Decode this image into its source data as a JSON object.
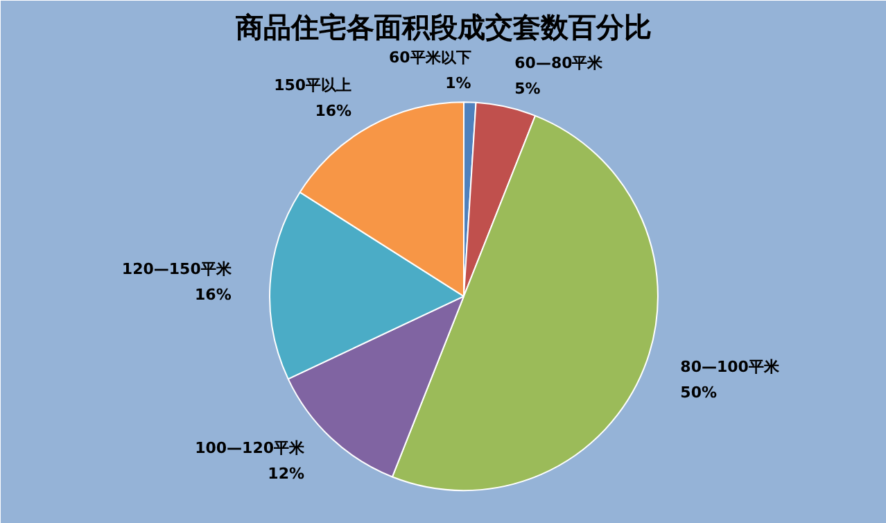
{
  "chart_data": {
    "type": "pie",
    "title": "商品住宅各面积段成交套数百分比",
    "categories": [
      "60平米以下",
      "60—80平米",
      "80—100平米",
      "100—120平米",
      "120—150平米",
      "150平以上"
    ],
    "values": [
      1,
      5,
      50,
      12,
      16,
      16
    ],
    "value_labels": [
      "1%",
      "5%",
      "50%",
      "12%",
      "16%",
      "16%"
    ],
    "colors": [
      "#4f81bd",
      "#c0504d",
      "#9bbb59",
      "#8064a2",
      "#4bacc6",
      "#f79646"
    ]
  }
}
